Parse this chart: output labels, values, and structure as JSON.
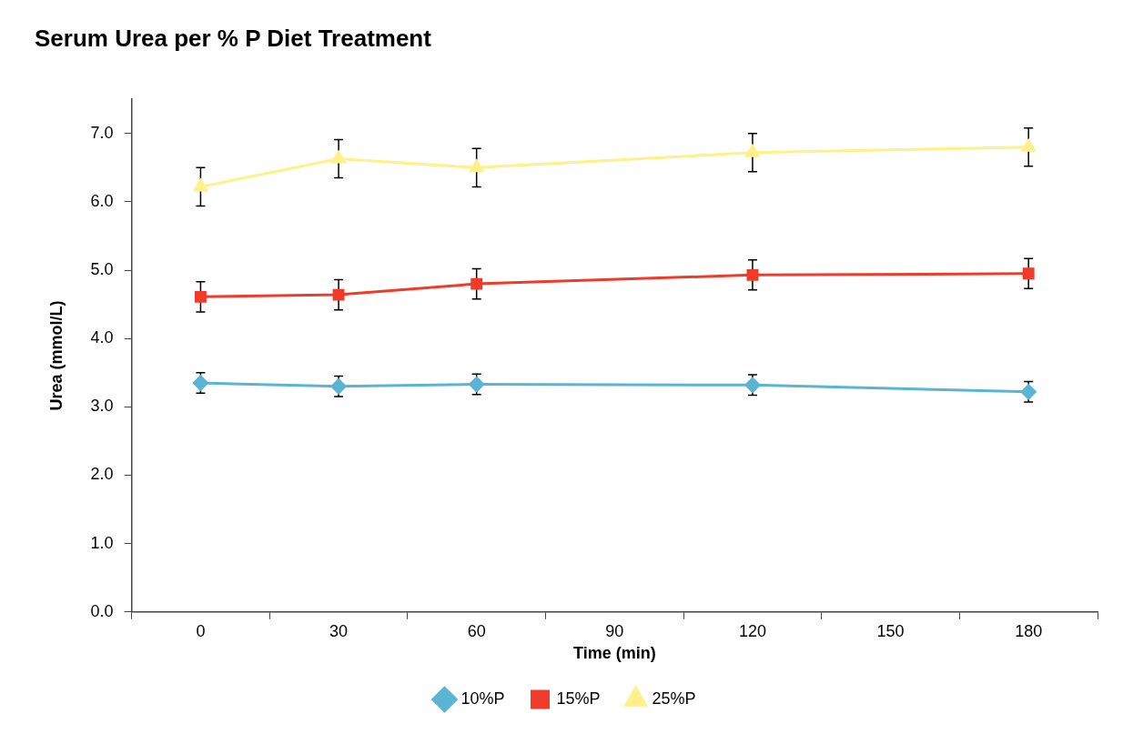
{
  "chart_data": {
    "type": "line",
    "title": "Serum Urea per % P Diet Treatment",
    "xlabel": "Time (min)",
    "ylabel": "Urea (mmol/L)",
    "x": [
      0,
      30,
      60,
      120,
      180
    ],
    "series": [
      {
        "name": "10%P",
        "color": "#5bb4d4",
        "marker": "diamond",
        "values": [
          3.35,
          3.3,
          3.33,
          3.32,
          3.22
        ],
        "errors": [
          0.15,
          0.15,
          0.15,
          0.15,
          0.15
        ]
      },
      {
        "name": "15%P",
        "color": "#f03a2a",
        "marker": "square",
        "values": [
          4.61,
          4.64,
          4.8,
          4.93,
          4.95
        ],
        "errors": [
          0.22,
          0.22,
          0.22,
          0.22,
          0.22
        ]
      },
      {
        "name": "25%P",
        "color": "#fff08a",
        "marker": "triangle",
        "values": [
          6.22,
          6.63,
          6.5,
          6.72,
          6.8
        ],
        "errors": [
          0.28,
          0.28,
          0.28,
          0.28,
          0.28
        ]
      }
    ],
    "xlim": [
      -15,
      195
    ],
    "xticks": [
      {
        "value": -15,
        "label": null
      },
      0,
      {
        "value": 15,
        "label": null
      },
      30,
      {
        "value": 45,
        "label": null
      },
      60,
      {
        "value": 75,
        "label": null
      },
      90,
      {
        "value": 105,
        "label": null
      },
      120,
      {
        "value": 135,
        "label": null
      },
      150,
      {
        "value": 165,
        "label": null
      },
      180,
      {
        "value": 195,
        "label": null
      }
    ],
    "ylim": [
      0,
      7.5
    ],
    "yticks": [
      {
        "value": 0,
        "label": "0.0"
      },
      {
        "value": 1,
        "label": "1.0"
      },
      {
        "value": 2,
        "label": "2.0"
      },
      {
        "value": 3,
        "label": "3.0"
      },
      {
        "value": 4,
        "label": "4.0"
      },
      {
        "value": 5,
        "label": "5.0"
      },
      {
        "value": 6,
        "label": "6.0"
      },
      {
        "value": 7,
        "label": "7.0"
      }
    ],
    "grid": false,
    "legend": "bottom",
    "line_style": "solid"
  }
}
